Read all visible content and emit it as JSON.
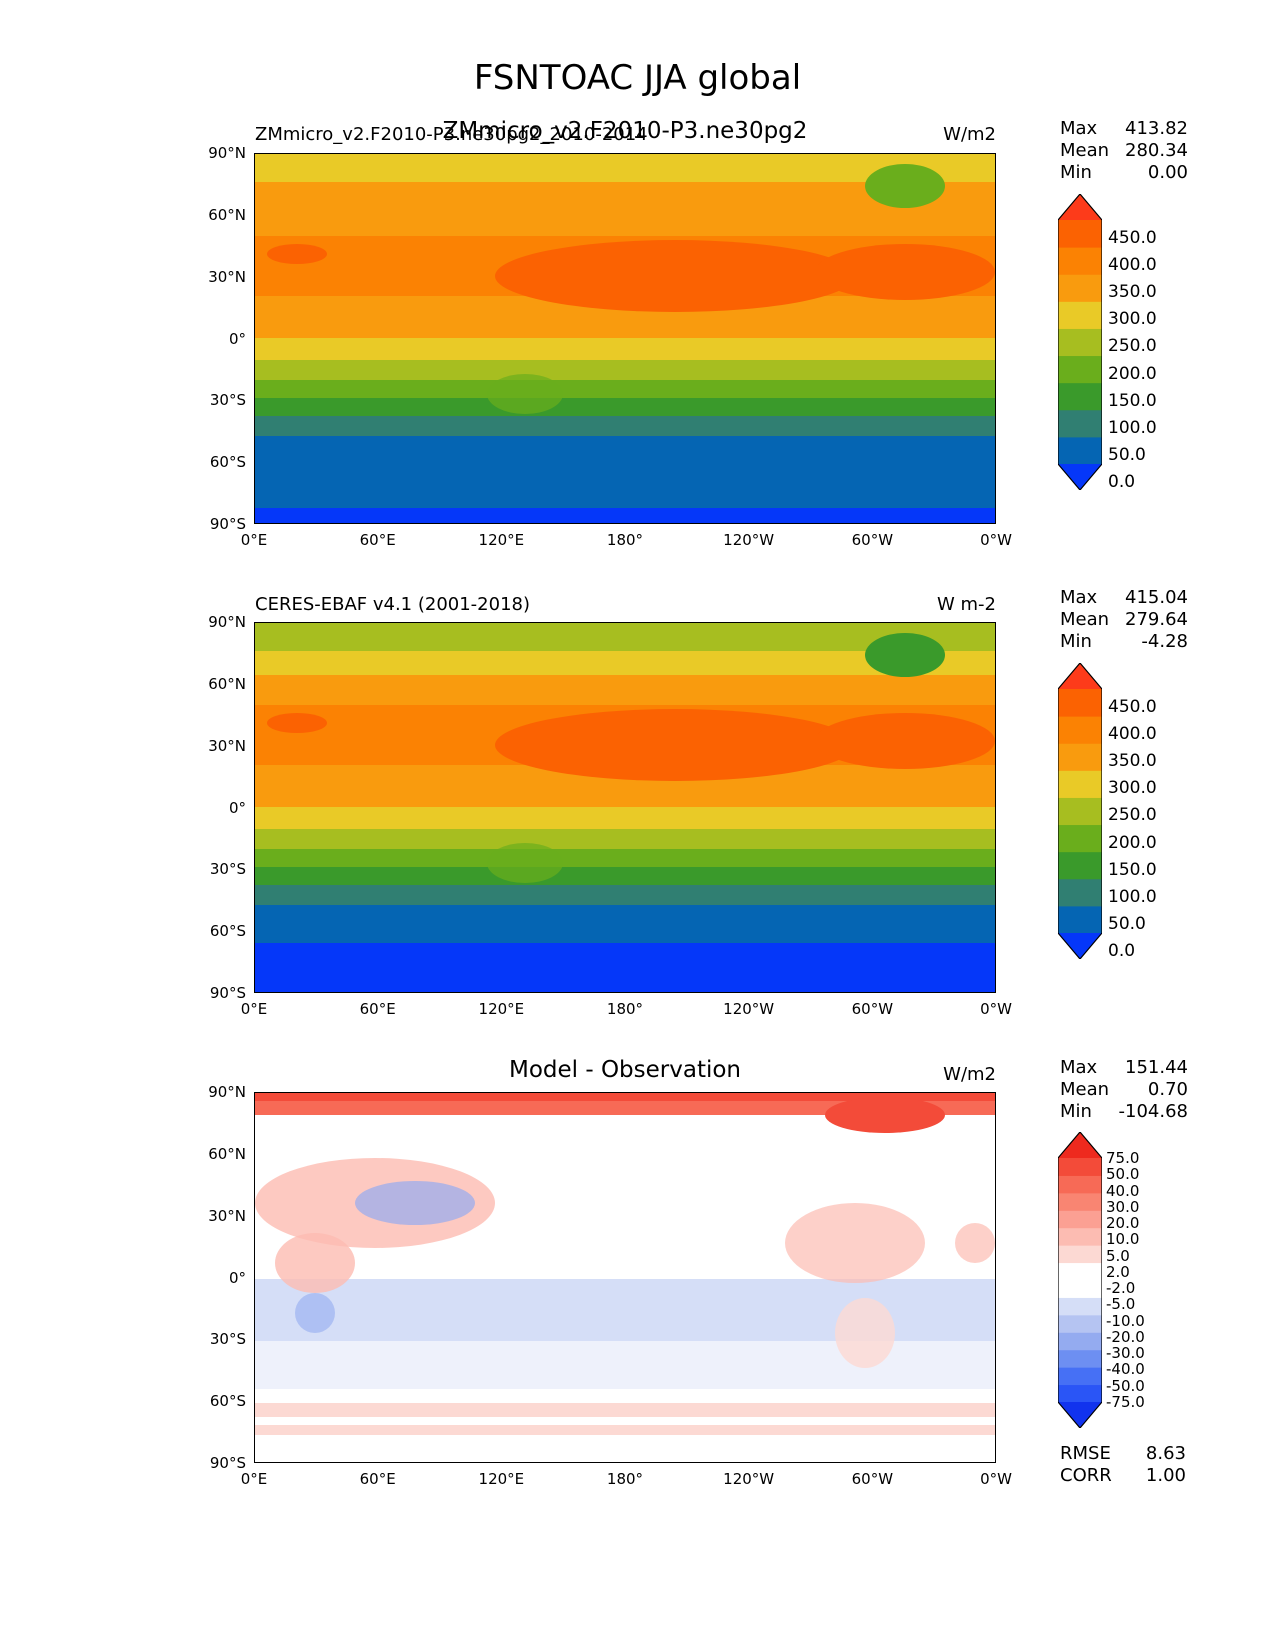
{
  "title": "FSNTOAC JJA global",
  "colors": {
    "abs_levels": [
      "#0537f9",
      "#0565b3",
      "#307f72",
      "#3a9a2b",
      "#6aae1c",
      "#a7be20",
      "#e9ca27",
      "#f99b0e",
      "#fb8203",
      "#fb6202",
      "#fd3b1a"
    ],
    "diff_levels": [
      "#1133ee",
      "#2a55f6",
      "#4670f5",
      "#6d8ff2",
      "#94abf0",
      "#b5c4f2",
      "#d5def7",
      "#ffffff",
      "#ffffff",
      "#fcd9d3",
      "#fcbcb2",
      "#fba093",
      "#f98572",
      "#f76a56",
      "#f34b39",
      "#ee2a1e"
    ]
  },
  "panels": [
    {
      "id": "test",
      "left_title": "ZMmicro_v2.F2010-P3.ne30pg2_2010-2014",
      "center_title": "ZMmicro_v2.F2010-P3.ne30pg2",
      "units": "W/m2",
      "stats": [
        {
          "label": "Max",
          "value": "413.82"
        },
        {
          "label": "Mean",
          "value": "280.34"
        },
        {
          "label": "Min",
          "value": "0.00"
        }
      ],
      "colorbar_labels": [
        "450.0",
        "400.0",
        "350.0",
        "300.0",
        "250.0",
        "200.0",
        "150.0",
        "100.0",
        "50.0",
        "0.0"
      ]
    },
    {
      "id": "ref",
      "left_title": "CERES-EBAF v4.1 (2001-2018)",
      "center_title": "",
      "units": "W m-2",
      "stats": [
        {
          "label": "Max",
          "value": "415.04"
        },
        {
          "label": "Mean",
          "value": "279.64"
        },
        {
          "label": "Min",
          "value": "-4.28"
        }
      ],
      "colorbar_labels": [
        "450.0",
        "400.0",
        "350.0",
        "300.0",
        "250.0",
        "200.0",
        "150.0",
        "100.0",
        "50.0",
        "0.0"
      ]
    },
    {
      "id": "diff",
      "left_title": "",
      "center_title": "Model - Observation",
      "units": "W/m2",
      "stats": [
        {
          "label": "Max",
          "value": "151.44"
        },
        {
          "label": "Mean",
          "value": "0.70"
        },
        {
          "label": "Min",
          "value": "-104.68"
        }
      ],
      "colorbar_labels": [
        "75.0",
        "50.0",
        "40.0",
        "30.0",
        "20.0",
        "10.0",
        "5.0",
        "2.0",
        "-2.0",
        "-5.0",
        "-10.0",
        "-20.0",
        "-30.0",
        "-40.0",
        "-50.0",
        "-75.0"
      ],
      "extra_stats": [
        {
          "label": "RMSE",
          "value": "8.63"
        },
        {
          "label": "CORR",
          "value": "1.00"
        }
      ]
    }
  ],
  "axes": {
    "lat_labels": [
      "90°N",
      "60°N",
      "30°N",
      "0°",
      "30°S",
      "60°S",
      "90°S"
    ],
    "lon_labels": [
      "0°E",
      "60°E",
      "120°E",
      "180°",
      "120°W",
      "60°W",
      "0°W"
    ]
  }
}
